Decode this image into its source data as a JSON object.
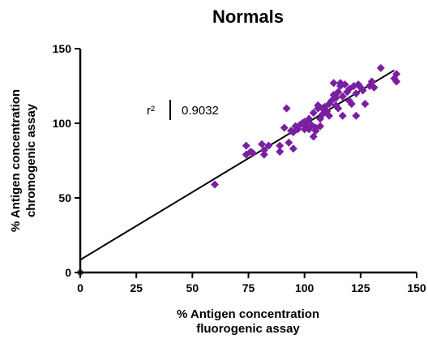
{
  "chart_data": {
    "type": "scatter",
    "title": "Normals",
    "xlabel_lines": [
      "% Antigen concentration",
      "fluorogenic assay"
    ],
    "ylabel_lines": [
      "% Antigen concentration",
      "chromogenic assay"
    ],
    "xlim": [
      0,
      150
    ],
    "ylim": [
      0,
      150
    ],
    "xticks": [
      0,
      25,
      50,
      75,
      100,
      125,
      150
    ],
    "yticks": [
      0,
      50,
      100,
      150
    ],
    "marker_color": "#7b1fa2",
    "line_color": "#000000",
    "annotation": {
      "label": "r²",
      "value": "0.9032"
    },
    "regression_line": {
      "x": [
        0,
        140
      ],
      "y": [
        8.5,
        135.5
      ]
    },
    "points": [
      [
        0,
        0
      ],
      [
        60,
        59
      ],
      [
        74,
        79
      ],
      [
        74,
        85
      ],
      [
        76,
        81
      ],
      [
        77,
        80
      ],
      [
        81,
        86
      ],
      [
        82,
        79
      ],
      [
        82,
        82
      ],
      [
        84,
        85
      ],
      [
        89,
        81
      ],
      [
        89,
        85
      ],
      [
        91,
        97
      ],
      [
        92,
        110
      ],
      [
        93,
        87
      ],
      [
        94,
        95
      ],
      [
        95,
        94
      ],
      [
        95,
        83
      ],
      [
        96,
        98
      ],
      [
        97,
        96
      ],
      [
        98,
        99
      ],
      [
        99,
        100
      ],
      [
        100,
        96
      ],
      [
        100,
        101
      ],
      [
        101,
        98
      ],
      [
        102,
        96
      ],
      [
        102,
        103
      ],
      [
        103,
        99
      ],
      [
        104,
        107
      ],
      [
        104,
        91
      ],
      [
        105,
        97
      ],
      [
        105,
        95
      ],
      [
        106,
        112
      ],
      [
        106,
        110
      ],
      [
        107,
        103
      ],
      [
        107,
        98
      ],
      [
        108,
        110
      ],
      [
        108,
        106
      ],
      [
        109,
        111
      ],
      [
        110,
        108
      ],
      [
        111,
        105
      ],
      [
        111,
        113
      ],
      [
        112,
        115
      ],
      [
        113,
        119
      ],
      [
        113,
        127
      ],
      [
        114,
        117
      ],
      [
        114,
        112
      ],
      [
        115,
        110
      ],
      [
        115,
        121
      ],
      [
        116,
        125
      ],
      [
        116,
        127
      ],
      [
        117,
        118
      ],
      [
        117,
        105
      ],
      [
        118,
        126
      ],
      [
        119,
        121
      ],
      [
        120,
        123
      ],
      [
        120,
        115
      ],
      [
        121,
        113
      ],
      [
        122,
        125
      ],
      [
        123,
        120
      ],
      [
        123,
        105
      ],
      [
        124,
        126
      ],
      [
        125,
        124
      ],
      [
        126,
        122
      ],
      [
        127,
        113
      ],
      [
        129,
        125
      ],
      [
        130,
        128
      ],
      [
        131,
        124
      ],
      [
        134,
        137
      ],
      [
        140,
        130
      ],
      [
        141,
        133
      ],
      [
        141,
        128
      ]
    ]
  }
}
